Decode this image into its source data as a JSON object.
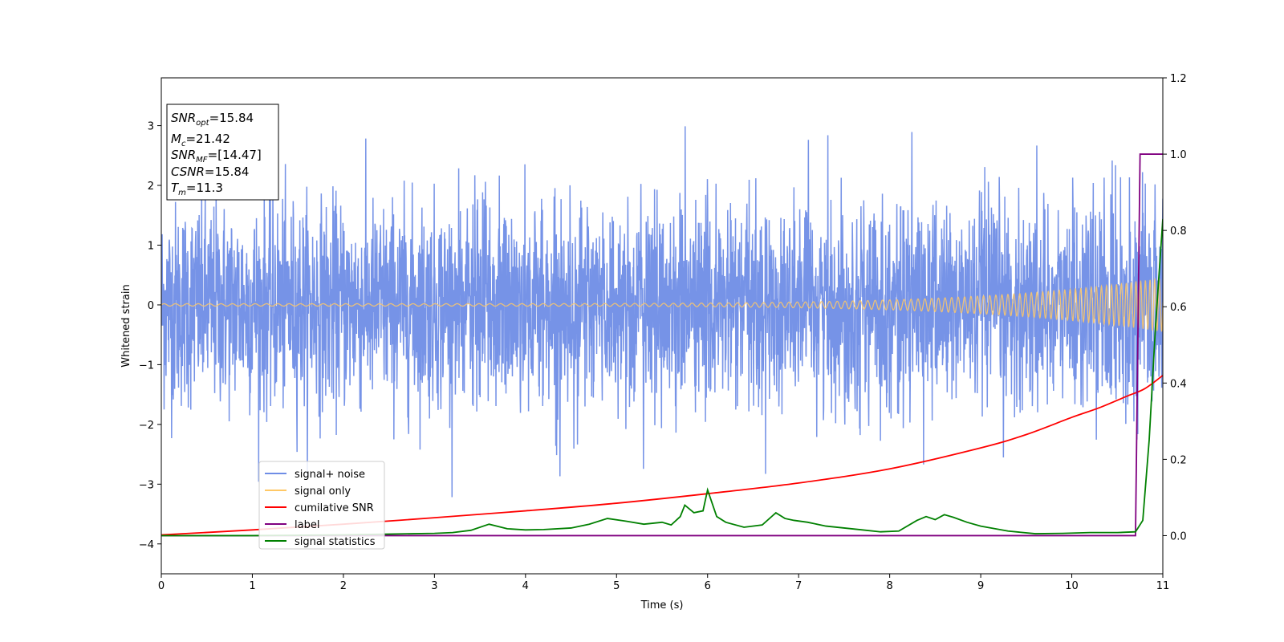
{
  "chart_data": {
    "type": "line",
    "xlabel": "Time (s)",
    "ylabel": "Whitened strain",
    "xlim": [
      0,
      11
    ],
    "ylim": [
      -4.5,
      3.8
    ],
    "y2lim": [
      -0.1,
      1.2
    ],
    "x_ticks": [
      "0",
      "1",
      "2",
      "3",
      "4",
      "5",
      "6",
      "7",
      "8",
      "9",
      "10",
      "11"
    ],
    "y_ticks": [
      "−4",
      "−3",
      "−2",
      "−1",
      "0",
      "1",
      "2",
      "3"
    ],
    "y2_ticks": [
      "0.0",
      "0.2",
      "0.4",
      "0.6",
      "0.8",
      "1.0",
      "1.2"
    ],
    "grid": false,
    "legend_position": "lower-left",
    "annotation": {
      "snr_opt": {
        "base": "SNR",
        "sub": "opt",
        "value": "=15.84"
      },
      "mc": {
        "base": "M",
        "sub": "c",
        "value": "=21.42"
      },
      "snr_mf": {
        "base": "SNR",
        "sub": "MF",
        "value": "=[14.47]"
      },
      "csnr": {
        "base": "CSNR",
        "value": "=15.84"
      },
      "tm": {
        "base": "T",
        "sub": "m",
        "value": "=11.3"
      }
    },
    "series": [
      {
        "name": "signal+ noise",
        "axis": "left",
        "color": "#6f8de6",
        "style": "noise band",
        "duration_s": 11,
        "spread_sigma": 0.85,
        "peak_max": 3.1,
        "peak_min": -3.3
      },
      {
        "name": "signal only",
        "axis": "left",
        "color": "#ffc866",
        "style": "chirp",
        "amplitude_start": 0.02,
        "amplitude_end": 0.45,
        "frequency_start_hz": 8,
        "frequency_end_hz": 20
      },
      {
        "name": "cumilative SNR",
        "axis": "right",
        "color": "#ff0000",
        "x": [
          0,
          1,
          2,
          3,
          4,
          5,
          6,
          7,
          8,
          9,
          9.5,
          10,
          10.3,
          10.6,
          10.8,
          11
        ],
        "values": [
          0.002,
          0.015,
          0.03,
          0.047,
          0.065,
          0.085,
          0.11,
          0.138,
          0.175,
          0.23,
          0.265,
          0.31,
          0.335,
          0.365,
          0.385,
          0.42
        ]
      },
      {
        "name": "label",
        "axis": "right",
        "color": "#800080",
        "x": [
          0,
          10.7,
          10.75,
          11
        ],
        "values": [
          0,
          0,
          1,
          1
        ]
      },
      {
        "name": "signal statistics",
        "axis": "right",
        "color": "#008000",
        "x": [
          0,
          1,
          2,
          2.5,
          3,
          3.2,
          3.4,
          3.6,
          3.8,
          4,
          4.2,
          4.5,
          4.7,
          4.9,
          5.1,
          5.3,
          5.5,
          5.6,
          5.7,
          5.75,
          5.85,
          5.95,
          6.0,
          6.1,
          6.2,
          6.4,
          6.6,
          6.75,
          6.85,
          6.95,
          7.1,
          7.3,
          7.5,
          7.7,
          7.9,
          8.1,
          8.3,
          8.4,
          8.5,
          8.6,
          8.7,
          8.85,
          9.0,
          9.3,
          9.6,
          9.9,
          10.2,
          10.5,
          10.7,
          10.78,
          10.85,
          10.92,
          11
        ],
        "values": [
          0.0,
          0.0,
          0.002,
          0.004,
          0.006,
          0.008,
          0.014,
          0.03,
          0.018,
          0.015,
          0.016,
          0.02,
          0.03,
          0.045,
          0.038,
          0.03,
          0.035,
          0.028,
          0.05,
          0.08,
          0.06,
          0.065,
          0.12,
          0.05,
          0.035,
          0.022,
          0.028,
          0.06,
          0.045,
          0.04,
          0.035,
          0.025,
          0.02,
          0.015,
          0.01,
          0.012,
          0.04,
          0.05,
          0.042,
          0.055,
          0.048,
          0.035,
          0.025,
          0.012,
          0.005,
          0.006,
          0.008,
          0.008,
          0.01,
          0.04,
          0.25,
          0.55,
          0.83
        ]
      }
    ]
  }
}
